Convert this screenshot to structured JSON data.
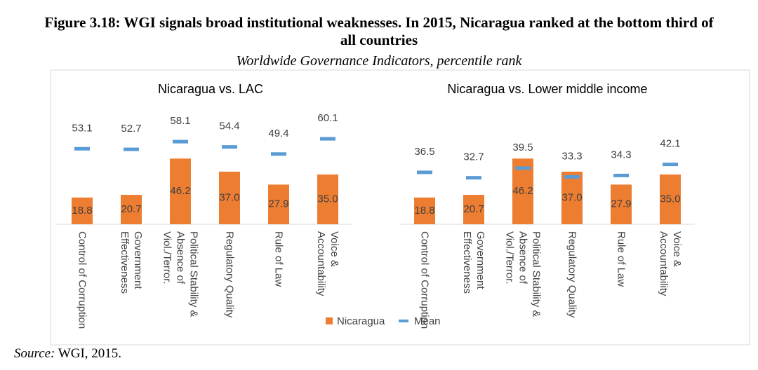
{
  "title": "Figure 3.18: WGI signals broad institutional weaknesses. In 2015, Nicaragua ranked at the bottom third of all countries",
  "subtitle": "Worldwide Governance Indicators, percentile rank",
  "source_label": "Source:",
  "source_text": "WGI, 2015.",
  "chart_data": [
    {
      "type": "bar",
      "title": "Nicaragua vs. LAC",
      "categories": [
        "Control of Corruption",
        "Government Effectiveness",
        "Political Stability & Absence of Viol./Terror.",
        "Regulatory Quality",
        "Rule of Law",
        "Voice & Accountability"
      ],
      "ylim": [
        0,
        70
      ],
      "series": [
        {
          "name": "Nicaragua",
          "color": "#ed7d31",
          "mark": "bar",
          "values": [
            18.8,
            20.7,
            46.2,
            37,
            27.9,
            35
          ],
          "value_labels": [
            "18.8",
            "20.7",
            "46.2",
            "37.0",
            "27.9",
            "35.0"
          ]
        },
        {
          "name": "Mean",
          "color": "#5b9bd5",
          "mark": "dash",
          "values": [
            53.1,
            52.7,
            58.1,
            54.4,
            49.4,
            60.1
          ]
        }
      ]
    },
    {
      "type": "bar",
      "title": "Nicaragua vs. Lower middle income",
      "categories": [
        "Control of Corruption",
        "Government Effectiveness",
        "Political Stability & Absence of Viol./Terror.",
        "Regulatory Quality",
        "Rule of Law",
        "Voice & Accountability"
      ],
      "ylim": [
        0,
        70
      ],
      "series": [
        {
          "name": "Nicaragua",
          "color": "#ed7d31",
          "mark": "bar",
          "values": [
            18.8,
            20.7,
            46.2,
            37,
            27.9,
            35
          ],
          "value_labels": [
            "18.8",
            "20.7",
            "46.2",
            "37.0",
            "27.9",
            "35.0"
          ]
        },
        {
          "name": "Mean",
          "color": "#5b9bd5",
          "mark": "dash",
          "values": [
            36.5,
            32.7,
            39.5,
            33.3,
            34.3,
            42.1
          ]
        }
      ]
    }
  ]
}
